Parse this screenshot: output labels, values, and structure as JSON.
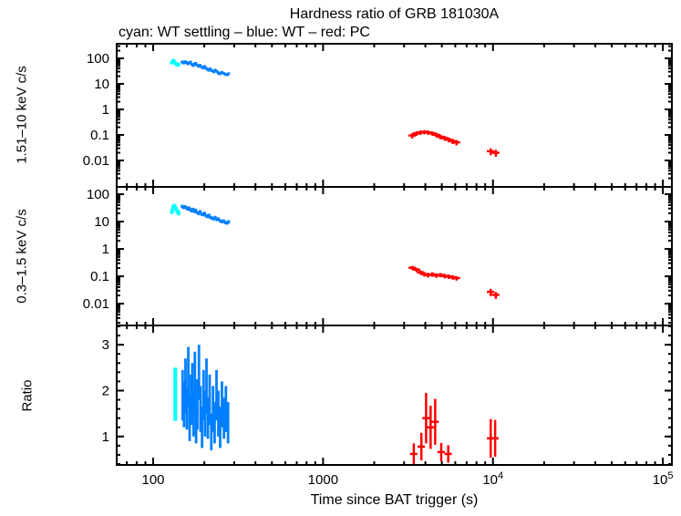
{
  "header": {
    "title": "Hardness ratio of GRB 181030A",
    "subtitle": "cyan: WT settling – blue: WT – red: PC"
  },
  "axes": {
    "x_label": "Time since BAT trigger (s)",
    "xscale": "log",
    "xlim": [
      61,
      113000
    ],
    "x_ticks": [
      {
        "v": 100,
        "label": "100"
      },
      {
        "v": 1000,
        "label": "1000"
      },
      {
        "v": 10000,
        "label": "10",
        "exp": "4"
      },
      {
        "v": 100000,
        "label": "10",
        "exp": "5"
      }
    ]
  },
  "colors": {
    "wt_settling": "#00ffff",
    "wt": "#007fff",
    "pc": "#ff0000",
    "frame": "#000000"
  },
  "chart_data": [
    {
      "type": "scatter",
      "id": "hard-band",
      "ylabel": "1.51–10 keV c/s",
      "yscale": "log",
      "ylim": [
        0.00092,
        372
      ],
      "yticks": [
        {
          "v": 100,
          "label": "100"
        },
        {
          "v": 10,
          "label": "10"
        },
        {
          "v": 1,
          "label": "1"
        },
        {
          "v": 0.1,
          "label": "0.1"
        },
        {
          "v": 0.01,
          "label": "0.01"
        }
      ],
      "series": [
        {
          "name": "WT settling",
          "color": "#00ffff",
          "lw": 4,
          "xef": 0.008,
          "x": [
            129,
            131,
            133.5,
            136,
            138.5,
            141
          ],
          "y": [
            68,
            82,
            76,
            62,
            55,
            58
          ],
          "ye": [
            10,
            11,
            10,
            8,
            8,
            8
          ]
        },
        {
          "name": "WT",
          "color": "#007fff",
          "lw": 3,
          "xef": 0.006,
          "x": [
            148,
            151,
            154,
            157,
            160,
            163,
            166,
            169,
            172,
            175,
            178,
            181,
            185,
            189,
            193,
            197,
            201,
            205,
            209,
            213,
            217,
            222,
            227,
            232,
            237,
            242,
            248,
            254,
            260,
            266,
            272,
            278
          ],
          "y": [
            72,
            66,
            74,
            69,
            62,
            67,
            71,
            58,
            53,
            60,
            64,
            55,
            49,
            53,
            46,
            43,
            48,
            41,
            37,
            35,
            39,
            33,
            30,
            34,
            31,
            27,
            25,
            28,
            26,
            24,
            23,
            25
          ],
          "ye": [
            9,
            8,
            9,
            9,
            8,
            8,
            9,
            7,
            7,
            8,
            8,
            7,
            6,
            7,
            6,
            6,
            6,
            5,
            5,
            5,
            5,
            4,
            4,
            5,
            4,
            4,
            3,
            4,
            3,
            3,
            3,
            3
          ]
        },
        {
          "name": "PC",
          "color": "#ff0000",
          "lw": 2.5,
          "xef": 0.05,
          "x": [
            3350,
            3550,
            3750,
            3950,
            4150,
            4400,
            4650,
            4900,
            5200,
            5500,
            5800,
            6100,
            9700,
            10400
          ],
          "y": [
            0.095,
            0.115,
            0.125,
            0.13,
            0.125,
            0.115,
            0.1,
            0.085,
            0.075,
            0.065,
            0.057,
            0.051,
            0.023,
            0.02
          ],
          "ye": [
            0.022,
            0.024,
            0.025,
            0.025,
            0.024,
            0.022,
            0.02,
            0.018,
            0.016,
            0.014,
            0.013,
            0.012,
            0.007,
            0.006
          ]
        }
      ]
    },
    {
      "type": "scatter",
      "id": "soft-band",
      "ylabel": "0.3–1.5 keV c/s",
      "yscale": "log",
      "ylim": [
        0.0016,
        185
      ],
      "yticks": [
        {
          "v": 100,
          "label": "100"
        },
        {
          "v": 10,
          "label": "10"
        },
        {
          "v": 1,
          "label": "1"
        },
        {
          "v": 0.1,
          "label": "0.1"
        },
        {
          "v": 0.01,
          "label": "0.01"
        }
      ],
      "series": [
        {
          "name": "WT settling",
          "color": "#00ffff",
          "lw": 4,
          "xef": 0.008,
          "x": [
            129,
            131,
            133.5,
            136,
            138.5,
            141
          ],
          "y": [
            24,
            34,
            38,
            30,
            24,
            21
          ],
          "ye": [
            5,
            6,
            6,
            5,
            4,
            4
          ]
        },
        {
          "name": "WT",
          "color": "#007fff",
          "lw": 3,
          "xef": 0.006,
          "x": [
            148,
            151,
            154,
            157,
            160,
            163,
            166,
            169,
            172,
            175,
            178,
            181,
            185,
            189,
            193,
            197,
            201,
            205,
            209,
            213,
            217,
            222,
            227,
            232,
            237,
            242,
            248,
            254,
            260,
            266,
            272,
            278
          ],
          "y": [
            36,
            33,
            35,
            32,
            29,
            31,
            27,
            25,
            28,
            24,
            26,
            22,
            20,
            23,
            19,
            18,
            20,
            16.5,
            15.5,
            17,
            14.5,
            13.5,
            12.8,
            14.2,
            12,
            12.5,
            10.8,
            10,
            10.5,
            9.3,
            9,
            9.8
          ],
          "ye": [
            5,
            4.5,
            5,
            4.5,
            4,
            4.5,
            4,
            3.5,
            4,
            3.5,
            3.5,
            3,
            3,
            3.2,
            2.7,
            2.5,
            2.8,
            2.3,
            2.2,
            2.4,
            2,
            1.9,
            1.8,
            2,
            1.7,
            1.8,
            1.5,
            1.4,
            1.5,
            1.3,
            1.3,
            1.4
          ]
        },
        {
          "name": "PC",
          "color": "#ff0000",
          "lw": 2.5,
          "xef": 0.05,
          "x": [
            3350,
            3550,
            3750,
            3950,
            4150,
            4400,
            4650,
            4900,
            5200,
            5500,
            5800,
            6100,
            9700,
            10400
          ],
          "y": [
            0.205,
            0.175,
            0.14,
            0.12,
            0.112,
            0.118,
            0.108,
            0.112,
            0.103,
            0.098,
            0.092,
            0.086,
            0.027,
            0.021
          ],
          "ye": [
            0.035,
            0.03,
            0.026,
            0.023,
            0.022,
            0.022,
            0.02,
            0.02,
            0.019,
            0.018,
            0.017,
            0.016,
            0.008,
            0.006
          ]
        }
      ]
    },
    {
      "type": "scatter",
      "id": "ratio",
      "ylabel": "Ratio",
      "yscale": "linear",
      "ylim": [
        0.38,
        3.42
      ],
      "yminor_step": 0.2,
      "yticks": [
        {
          "v": 1,
          "label": "1"
        },
        {
          "v": 2,
          "label": "2"
        },
        {
          "v": 3,
          "label": "3"
        }
      ],
      "series": [
        {
          "name": "WT settling",
          "color": "#00ffff",
          "lw": 4,
          "xef": 0.008,
          "x": [
            135
          ],
          "y": [
            1.92
          ],
          "ye": [
            0.58
          ]
        },
        {
          "name": "WT",
          "color": "#007fff",
          "lw": 2.8,
          "xef": 0.006,
          "x": [
            149,
            152,
            155,
            158,
            161,
            164,
            167,
            170,
            173,
            176,
            179,
            182,
            186,
            190,
            194,
            198,
            202,
            206,
            210,
            215,
            220,
            225,
            230,
            236,
            242,
            248,
            254,
            261,
            268,
            276
          ],
          "y": [
            1.9,
            1.7,
            2.1,
            1.6,
            2.3,
            1.4,
            1.8,
            2.0,
            1.5,
            2.2,
            1.3,
            1.7,
            2.4,
            1.6,
            1.2,
            1.9,
            1.5,
            2.1,
            1.4,
            1.8,
            1.1,
            1.6,
            1.3,
            1.9,
            1.5,
            1.2,
            1.7,
            1.4,
            1.6,
            1.3
          ],
          "ye": [
            0.55,
            0.5,
            0.6,
            0.45,
            0.65,
            0.5,
            0.55,
            0.6,
            0.5,
            0.65,
            0.45,
            0.55,
            0.6,
            0.5,
            0.45,
            0.55,
            0.5,
            0.6,
            0.45,
            0.55,
            0.4,
            0.5,
            0.45,
            0.55,
            0.5,
            0.45,
            0.5,
            0.45,
            0.5,
            0.45
          ]
        },
        {
          "name": "PC",
          "color": "#ff0000",
          "lw": 2.5,
          "xef": 0.05,
          "x": [
            3420,
            3790,
            4040,
            4295,
            4570,
            4960,
            5455,
            9700,
            10300
          ],
          "y": [
            0.62,
            0.78,
            1.4,
            1.2,
            1.32,
            0.66,
            0.62,
            0.96,
            0.96
          ],
          "ye": [
            0.23,
            0.3,
            0.55,
            0.47,
            0.5,
            0.2,
            0.19,
            0.42,
            0.4
          ]
        }
      ]
    }
  ]
}
